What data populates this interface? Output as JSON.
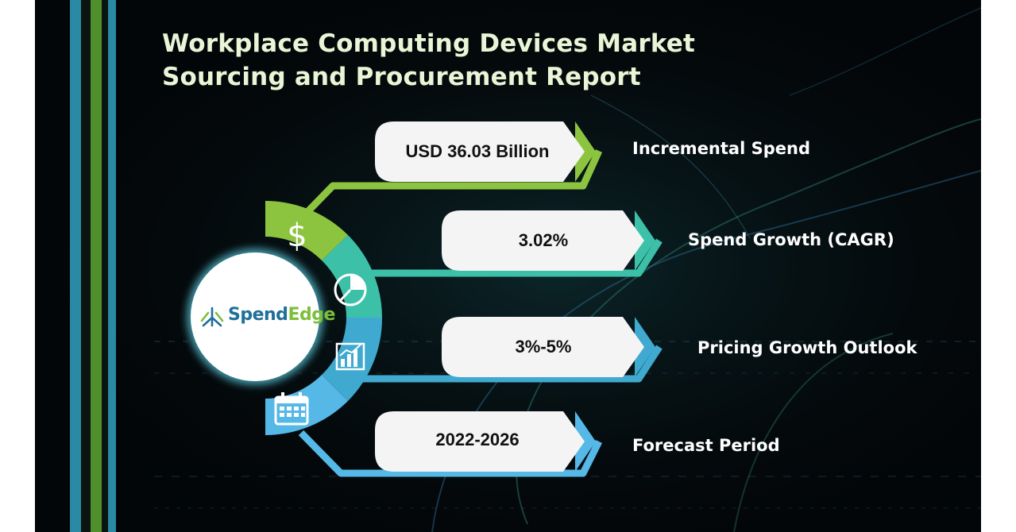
{
  "title": {
    "line1": "Workplace Computing Devices Market",
    "line2": "Sourcing and Procurement Report"
  },
  "logo": {
    "brand_part1": "Spend",
    "brand_part2": "Edge",
    "mark_icon": "spendedge-tree-icon"
  },
  "metrics": [
    {
      "value": "USD 36.03 Billion",
      "label": "Incremental Spend",
      "icon": "dollar-icon",
      "color": "#8cc43f"
    },
    {
      "value": "3.02%",
      "label": "Spend Growth (CAGR)",
      "icon": "pie-chart-icon",
      "color": "#3cc1a8"
    },
    {
      "value": "3%-5%",
      "label": "Pricing Growth Outlook",
      "icon": "bar-chart-icon",
      "color": "#3fa9cf"
    },
    {
      "value": "2022-2026",
      "label": "Forecast Period",
      "icon": "calendar-icon",
      "color": "#55b8e6"
    }
  ],
  "colors": {
    "background": "#030608",
    "title_text": "#e9f5d6",
    "stripe_blue": "#2a8aa3",
    "stripe_green": "#4f8f2c"
  }
}
